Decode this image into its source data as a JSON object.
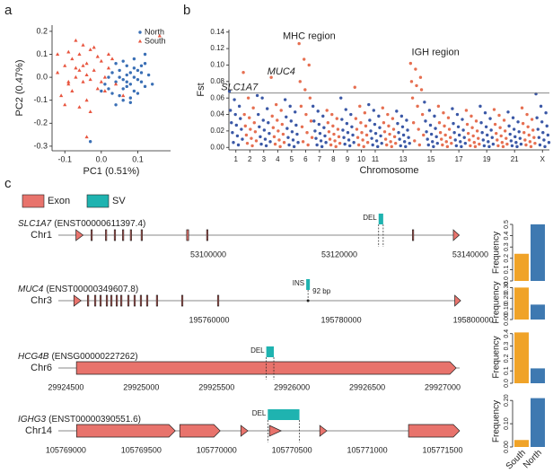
{
  "panel_labels": [
    "a",
    "b",
    "c"
  ],
  "chart_data": [
    {
      "type": "scatter",
      "xlabel": "PC1 (0.51%)",
      "ylabel": "PC2 (0.47%)",
      "xlim": [
        -0.135,
        0.19
      ],
      "ylim": [
        -0.32,
        0.227
      ],
      "xticks": [
        -0.1,
        {
          "value": 0,
          "label": "0.0"
        },
        0.1
      ],
      "yticks": [
        -0.3,
        -0.2,
        -0.1,
        {
          "value": 0,
          "label": "0.0"
        },
        0.1,
        0.2
      ],
      "legend": "upper right",
      "series": [
        {
          "name": "North",
          "color": "#3a6fb5",
          "marker": "circle",
          "x": [
            0.02,
            0.04,
            0.05,
            0.06,
            0.07,
            0.08,
            0.09,
            0.1,
            0.11,
            0.12,
            0.03,
            0.05,
            0.07,
            0.09,
            0.11,
            0.13,
            0.01,
            0.04,
            0.06,
            0.08,
            0.1,
            0.12,
            0.02,
            0.05,
            0.07,
            0.09,
            0.03,
            0.06,
            0.08,
            0.1,
            0.14,
            0.0,
            0.04,
            0.07,
            0.11,
            0.06,
            0.09,
            -0.03,
            0.12,
            0.08
          ],
          "values": [
            0.0,
            -0.02,
            0.03,
            -0.05,
            0.01,
            -0.03,
            0.04,
            -0.01,
            0.02,
            -0.04,
            -0.07,
            -0.08,
            0.05,
            -0.06,
            -0.02,
            0.01,
            -0.03,
            0.06,
            -0.01,
            -0.09,
            0.03,
            0.06,
            -0.05,
            0.0,
            -0.04,
            0.08,
            0.02,
            -0.1,
            0.02,
            -0.07,
            -0.03,
            -0.06,
            -0.12,
            -0.02,
            0.05,
            0.07,
            0.0,
            -0.28,
            0.1,
            -0.11
          ]
        },
        {
          "name": "South",
          "color": "#e8553f",
          "marker": "triangle",
          "x": [
            -0.12,
            -0.1,
            -0.09,
            -0.08,
            -0.07,
            -0.06,
            -0.05,
            -0.04,
            -0.03,
            -0.02,
            -0.01,
            0.0,
            0.01,
            0.02,
            -0.11,
            -0.09,
            -0.07,
            -0.05,
            -0.03,
            -0.01,
            0.01,
            -0.08,
            -0.06,
            -0.04,
            -0.02,
            0.0,
            0.03,
            -0.1,
            -0.05,
            -0.03,
            0.04,
            -0.07,
            -0.12,
            0.02,
            -0.04,
            0.06,
            0.16,
            -0.09,
            -0.06,
            -0.04
          ],
          "values": [
            0.02,
            0.05,
            -0.03,
            0.08,
            0.0,
            0.1,
            -0.02,
            0.06,
            0.12,
            0.03,
            -0.05,
            0.07,
            0.0,
            0.04,
            -0.08,
            0.11,
            0.04,
            0.14,
            -0.01,
            0.09,
            -0.06,
            -0.06,
            0.03,
            -0.1,
            0.13,
            -0.02,
            0.08,
            -0.12,
            0.05,
            -0.15,
            -0.03,
            0.16,
            0.1,
            0.1,
            0.01,
            -0.08,
            0.18,
            -0.02,
            -0.13,
            -0.26
          ]
        }
      ]
    },
    {
      "type": "manhattan",
      "xlabel": "Chromosome",
      "ylabel": "Fst",
      "categories": [
        "1",
        "2",
        "3",
        "4",
        "5",
        "6",
        "7",
        "8",
        "9",
        "10",
        "11",
        null,
        "13",
        null,
        "15",
        null,
        "17",
        null,
        "19",
        null,
        "21",
        null,
        "X"
      ],
      "colors": [
        "#3b58a6",
        "#e66f51"
      ],
      "ylim": [
        -0.003,
        0.143
      ],
      "yticks": [
        {
          "value": 0,
          "label": "0.00"
        },
        {
          "value": 0.02,
          "label": "0.02"
        },
        {
          "value": 0.04,
          "label": "0.04"
        },
        {
          "value": 0.06,
          "label": "0.06"
        },
        {
          "value": 0.08,
          "label": "0.08"
        },
        {
          "value": 0.1,
          "label": "0.10"
        },
        {
          "value": 0.12,
          "label": "0.12"
        },
        {
          "value": 0.14,
          "label": "0.14"
        }
      ],
      "threshold": 0.066,
      "annotations": [
        "SLC1A7",
        "MUC4",
        "MHC region",
        "IGH region"
      ],
      "values": [
        [
          0.068,
          0.058,
          0.05,
          0.045,
          0.04,
          0.035,
          0.03,
          0.027,
          0.022,
          0.018,
          0.014,
          0.01,
          0.006,
          0.003
        ],
        [
          0.091,
          0.06,
          0.048,
          0.04,
          0.036,
          0.03,
          0.026,
          0.022,
          0.019,
          0.015,
          0.011,
          0.008,
          0.005,
          0.002
        ],
        [
          0.063,
          0.06,
          0.047,
          0.04,
          0.033,
          0.03,
          0.025,
          0.021,
          0.017,
          0.013,
          0.01,
          0.007,
          0.004,
          0.002
        ],
        [
          0.085,
          0.052,
          0.045,
          0.038,
          0.033,
          0.028,
          0.024,
          0.02,
          0.016,
          0.013,
          0.009,
          0.006,
          0.004,
          0.001
        ],
        [
          0.058,
          0.05,
          0.043,
          0.037,
          0.032,
          0.027,
          0.023,
          0.019,
          0.016,
          0.012,
          0.009,
          0.006,
          0.003,
          0.001
        ],
        [
          0.126,
          0.107,
          0.1,
          0.08,
          0.07,
          0.06,
          0.05,
          0.04,
          0.032,
          0.025,
          0.018,
          0.012,
          0.007,
          0.003
        ],
        [
          0.05,
          0.044,
          0.038,
          0.032,
          0.028,
          0.024,
          0.02,
          0.017,
          0.014,
          0.011,
          0.008,
          0.006,
          0.003,
          0.001
        ],
        [
          0.045,
          0.04,
          0.035,
          0.03,
          0.026,
          0.022,
          0.019,
          0.016,
          0.013,
          0.01,
          0.008,
          0.005,
          0.003,
          0.001
        ],
        [
          0.06,
          0.046,
          0.04,
          0.034,
          0.029,
          0.025,
          0.021,
          0.018,
          0.015,
          0.012,
          0.009,
          0.006,
          0.004,
          0.002
        ],
        [
          0.073,
          0.05,
          0.042,
          0.035,
          0.03,
          0.026,
          0.022,
          0.018,
          0.015,
          0.012,
          0.009,
          0.006,
          0.003,
          0.001
        ],
        [
          0.052,
          0.045,
          0.038,
          0.033,
          0.028,
          0.024,
          0.02,
          0.017,
          0.014,
          0.011,
          0.008,
          0.005,
          0.003,
          0.001
        ],
        [
          0.048,
          0.04,
          0.035,
          0.03,
          0.026,
          0.022,
          0.019,
          0.016,
          0.013,
          0.01,
          0.007,
          0.005,
          0.003,
          0.001
        ],
        [
          0.044,
          0.038,
          0.033,
          0.029,
          0.025,
          0.021,
          0.018,
          0.015,
          0.012,
          0.01,
          0.007,
          0.005,
          0.002,
          0.001
        ],
        [
          0.102,
          0.095,
          0.085,
          0.08,
          0.075,
          0.07,
          0.06,
          0.05,
          0.04,
          0.03,
          0.022,
          0.015,
          0.008,
          0.003
        ],
        [
          0.055,
          0.045,
          0.038,
          0.032,
          0.027,
          0.023,
          0.019,
          0.016,
          0.013,
          0.01,
          0.007,
          0.005,
          0.003,
          0.001
        ],
        [
          0.05,
          0.042,
          0.036,
          0.03,
          0.026,
          0.022,
          0.018,
          0.015,
          0.012,
          0.01,
          0.007,
          0.005,
          0.003,
          0.001
        ],
        [
          0.047,
          0.04,
          0.034,
          0.029,
          0.025,
          0.021,
          0.018,
          0.015,
          0.012,
          0.009,
          0.007,
          0.005,
          0.002,
          0.001
        ],
        [
          0.045,
          0.038,
          0.032,
          0.028,
          0.024,
          0.02,
          0.017,
          0.014,
          0.011,
          0.009,
          0.006,
          0.004,
          0.002,
          0.001
        ],
        [
          0.05,
          0.042,
          0.035,
          0.03,
          0.025,
          0.021,
          0.018,
          0.015,
          0.012,
          0.009,
          0.007,
          0.004,
          0.002,
          0.001
        ],
        [
          0.046,
          0.039,
          0.033,
          0.028,
          0.024,
          0.02,
          0.017,
          0.014,
          0.011,
          0.009,
          0.006,
          0.004,
          0.002,
          0.001
        ],
        [
          0.043,
          0.036,
          0.031,
          0.026,
          0.022,
          0.019,
          0.016,
          0.013,
          0.011,
          0.008,
          0.006,
          0.004,
          0.002,
          0.001
        ],
        [
          0.048,
          0.04,
          0.034,
          0.029,
          0.025,
          0.021,
          0.018,
          0.015,
          0.012,
          0.009,
          0.007,
          0.005,
          0.003,
          0.001
        ],
        [
          0.065,
          0.05,
          0.042,
          0.036,
          0.031,
          0.026,
          0.022,
          0.018,
          0.015,
          0.012,
          0.009,
          0.006,
          0.003,
          0.001
        ]
      ]
    },
    {
      "type": "bar",
      "ylabel": "Frequency",
      "categories": [
        null,
        null
      ],
      "values": [
        0.24,
        0.5
      ],
      "colors": [
        "#f0a328",
        "#3e79b1"
      ],
      "ylim": [
        0,
        0.5
      ],
      "yticks": [
        {
          "value": 0,
          "label": "0.0"
        },
        0.1,
        0.2,
        0.3,
        0.4,
        0.5
      ]
    },
    {
      "type": "bar",
      "ylabel": "Frequency",
      "categories": [
        null,
        null
      ],
      "values": [
        0.3,
        0.14
      ],
      "colors": [
        "#f0a328",
        "#3e79b1"
      ],
      "ylim": [
        0,
        0.32
      ],
      "yticks": [
        {
          "value": 0,
          "label": "0.00"
        },
        {
          "value": 0.1,
          "label": "0.10"
        },
        {
          "value": 0.2,
          "label": "0.20"
        },
        {
          "value": 0.3,
          "label": "0.30"
        }
      ]
    },
    {
      "type": "bar",
      "ylabel": "Frequency",
      "categories": [
        null,
        null
      ],
      "values": [
        0.41,
        0.12
      ],
      "colors": [
        "#f0a328",
        "#3e79b1"
      ],
      "ylim": [
        0,
        0.42
      ],
      "yticks": [
        {
          "value": 0,
          "label": "0.0"
        },
        0.1,
        0.2,
        0.3,
        0.4
      ]
    },
    {
      "type": "bar",
      "ylabel": "Frequency",
      "categories": [
        "South",
        "North"
      ],
      "values": [
        0.03,
        0.21
      ],
      "colors": [
        "#f0a328",
        "#3e79b1"
      ],
      "ylim": [
        0,
        0.22
      ],
      "yticks": [
        {
          "value": 0,
          "label": "0.00"
        },
        {
          "value": 0.1,
          "label": "0.10"
        },
        {
          "value": 0.2,
          "label": "0.20"
        }
      ]
    }
  ],
  "gene_tracks": {
    "legend": [
      {
        "label": "Exon",
        "color": "#e8736c"
      },
      {
        "label": "SV",
        "color": "#1fb3b0"
      }
    ],
    "tracks": [
      {
        "gene": "SLC1A7",
        "transcript": "(ENST00000611397.4)",
        "chromosome": "Chr1",
        "xlim": [
          53077120,
          53142200
        ],
        "xticks": [
          53100000,
          53120000,
          53140000
        ],
        "exons": [
          [
            53079800,
            53080900
          ],
          [
            53082100,
            53082300
          ],
          [
            53084300,
            53084500
          ],
          [
            53085650,
            53085850
          ],
          [
            53086900,
            53087100
          ],
          [
            53088100,
            53088300
          ],
          [
            53089750,
            53089950
          ],
          [
            53096700,
            53097000
          ],
          [
            53099750,
            53099950
          ],
          [
            53131150,
            53131350
          ],
          [
            53137400,
            53138300
          ]
        ],
        "sv": {
          "type": "DEL",
          "range": [
            53126000,
            53126700
          ]
        }
      },
      {
        "gene": "MUC4",
        "transcript": "(ENST00000349607.8)",
        "chromosome": "Chr3",
        "xlim": [
          195737150,
          195801750
        ],
        "xticks": [
          195760000,
          195780000,
          195800000
        ],
        "exons": [
          [
            195739500,
            195740600
          ],
          [
            195741550,
            195741750
          ],
          [
            195742630,
            195742830
          ],
          [
            195743450,
            195743650
          ],
          [
            195744400,
            195744600
          ],
          [
            195745080,
            195745280
          ],
          [
            195745900,
            195746100
          ],
          [
            195746580,
            195746780
          ],
          [
            195747660,
            195747860
          ],
          [
            195748610,
            195748810
          ],
          [
            195749560,
            195749760
          ],
          [
            195750510,
            195750710
          ],
          [
            195752000,
            195752200
          ],
          [
            195755820,
            195756020
          ],
          [
            195761260,
            195761460
          ],
          [
            195797200,
            195798100
          ]
        ],
        "sv": {
          "type": "INS",
          "range": [
            195774700,
            195775250
          ],
          "note": "92 bp"
        }
      },
      {
        "gene": "HCG4B",
        "transcript": "(ENSG00000227262)",
        "chromosome": "Chr6",
        "xlim": [
          29924450,
          29927280
        ],
        "xticks": [
          29924500,
          29925000,
          29925500,
          29926000,
          29926500,
          29927000
        ],
        "exons": [
          [
            29924570,
            29927090
          ]
        ],
        "sv": {
          "type": "DEL",
          "range": [
            29925830,
            29925880
          ]
        }
      },
      {
        "gene": "IGHG3",
        "transcript": "(ENST00000390551.6)",
        "chromosome": "Chr14",
        "xlim": [
          105768950,
          105771780
        ],
        "xticks": [
          105769000,
          105769500,
          105770000,
          105770500,
          105771000,
          105771500
        ],
        "exons": [
          [
            105769071,
            105769726
          ],
          [
            105769756,
            105770024
          ],
          [
            105770161,
            105770208
          ],
          [
            105770351,
            105770429
          ],
          [
            105770685,
            105770732
          ],
          [
            105771274,
            105771613
          ]
        ],
        "sv": {
          "type": "DEL",
          "range": [
            105770340,
            105770550
          ]
        }
      }
    ]
  }
}
